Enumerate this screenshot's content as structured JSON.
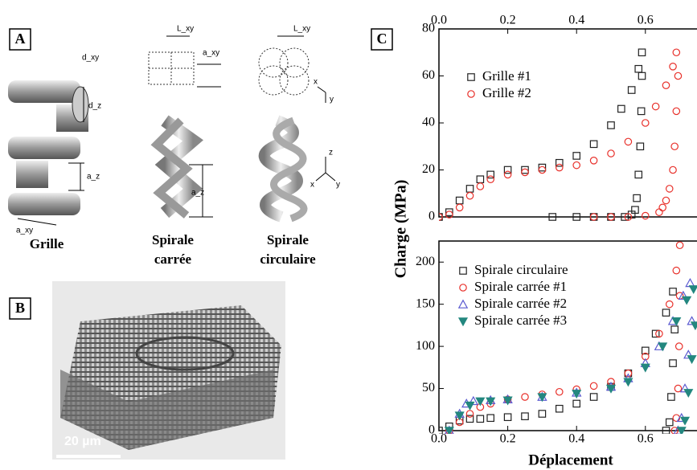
{
  "figure": {
    "panel_labels": [
      "A",
      "B",
      "C"
    ],
    "structures": [
      {
        "name_lines": [
          "Grille"
        ],
        "dims": [
          "d_xy",
          "d_z",
          "a_z",
          "a_xy"
        ]
      },
      {
        "name_lines": [
          "Spirale",
          "carrée"
        ],
        "dims": [
          "L_xy",
          "a_xy",
          "a_z"
        ]
      },
      {
        "name_lines": [
          "Spirale",
          "circulaire"
        ],
        "dims": [
          "L_xy",
          "x",
          "y",
          "z",
          "x",
          "y"
        ]
      }
    ],
    "scale_bar": "20 µm"
  },
  "chart_data": [
    {
      "type": "scatter",
      "ylabel": "Charge (MPa)",
      "xaxis_position": "top",
      "xlim": [
        0,
        0.75
      ],
      "ylim": [
        0,
        80
      ],
      "xticks": [
        {
          "value": 0,
          "label": "0.0"
        },
        0.2,
        0.4,
        0.6
      ],
      "yticks": [
        0,
        20,
        40,
        60,
        80
      ],
      "legend": "upper left",
      "series": [
        {
          "name": "Grille #1",
          "color": "#222222",
          "marker": "square",
          "x": [
            0,
            0.03,
            0.06,
            0.09,
            0.12,
            0.15,
            0.2,
            0.25,
            0.3,
            0.35,
            0.4,
            0.45,
            0.5,
            0.53,
            0.56,
            0.58,
            0.59,
            0.59,
            0.588,
            0.585,
            0.58,
            0.575,
            0.57,
            0.56,
            0.54,
            0.5,
            0.45,
            0.4,
            0.33
          ],
          "values": [
            0,
            2,
            7,
            12,
            16,
            18,
            20,
            20,
            21,
            23,
            26,
            31,
            39,
            46,
            54,
            63,
            70,
            60,
            45,
            30,
            18,
            8,
            3,
            1,
            0,
            0,
            0,
            0,
            0
          ]
        },
        {
          "name": "Grille #2",
          "color": "#e8302a",
          "marker": "circle",
          "x": [
            0,
            0.03,
            0.06,
            0.09,
            0.12,
            0.15,
            0.2,
            0.25,
            0.3,
            0.35,
            0.4,
            0.45,
            0.5,
            0.55,
            0.6,
            0.63,
            0.66,
            0.68,
            0.69,
            0.695,
            0.69,
            0.685,
            0.68,
            0.67,
            0.66,
            0.65,
            0.64,
            0.6,
            0.55,
            0.5,
            0.45
          ],
          "values": [
            0,
            1,
            4,
            9,
            13,
            16,
            18,
            19,
            20,
            21,
            22,
            24,
            27,
            32,
            40,
            47,
            56,
            64,
            70,
            60,
            45,
            30,
            20,
            12,
            7,
            4,
            2,
            0.5,
            0,
            0,
            0
          ]
        }
      ]
    },
    {
      "type": "scatter",
      "xlabel": "Déplacement",
      "xaxis_position": "bottom",
      "xlim": [
        0,
        0.75
      ],
      "ylim": [
        0,
        225
      ],
      "xticks": [
        {
          "value": 0,
          "label": "0.0"
        },
        0.2,
        0.4,
        0.6
      ],
      "yticks": [
        0,
        50,
        100,
        150,
        200
      ],
      "legend": "upper left",
      "series": [
        {
          "name": "Spirale circulaire",
          "color": "#222222",
          "marker": "square",
          "x": [
            0,
            0.03,
            0.06,
            0.09,
            0.12,
            0.15,
            0.2,
            0.25,
            0.3,
            0.35,
            0.4,
            0.45,
            0.5,
            0.55,
            0.6,
            0.63,
            0.66,
            0.68,
            0.685,
            0.68,
            0.675,
            0.67,
            0.66
          ],
          "values": [
            0,
            5,
            12,
            14,
            14,
            15,
            16,
            17,
            20,
            26,
            32,
            40,
            52,
            68,
            95,
            115,
            140,
            165,
            120,
            80,
            40,
            10,
            0
          ]
        },
        {
          "name": "Spirale carrée #1",
          "color": "#e8302a",
          "marker": "circle",
          "x": [
            0.03,
            0.06,
            0.09,
            0.12,
            0.15,
            0.2,
            0.25,
            0.3,
            0.35,
            0.4,
            0.45,
            0.5,
            0.55,
            0.6,
            0.64,
            0.67,
            0.69,
            0.7,
            0.7,
            0.698,
            0.695,
            0.69,
            0.685
          ],
          "values": [
            0,
            10,
            20,
            28,
            32,
            37,
            40,
            43,
            46,
            49,
            53,
            58,
            68,
            88,
            115,
            150,
            190,
            220,
            160,
            100,
            50,
            15,
            0
          ]
        },
        {
          "name": "Spirale carrée #2",
          "color": "#5a5ad0",
          "marker": "triangle",
          "x": [
            0.03,
            0.06,
            0.08,
            0.1,
            0.15,
            0.2,
            0.3,
            0.4,
            0.5,
            0.55,
            0.6,
            0.64,
            0.68,
            0.71,
            0.73,
            0.735,
            0.725,
            0.715,
            0.705,
            0.695
          ],
          "values": [
            0,
            20,
            32,
            35,
            36,
            37,
            40,
            45,
            52,
            62,
            80,
            100,
            130,
            160,
            175,
            130,
            90,
            50,
            15,
            0
          ]
        },
        {
          "name": "Spirale carrée #3",
          "color": "#23877f",
          "marker": "triangle-down",
          "x": [
            0.03,
            0.06,
            0.09,
            0.12,
            0.15,
            0.2,
            0.3,
            0.4,
            0.5,
            0.55,
            0.6,
            0.65,
            0.69,
            0.72,
            0.74,
            0.745,
            0.735,
            0.725,
            0.715,
            0.705
          ],
          "values": [
            0,
            18,
            30,
            35,
            35,
            36,
            40,
            44,
            50,
            58,
            75,
            100,
            130,
            155,
            168,
            125,
            85,
            45,
            12,
            0
          ]
        }
      ]
    }
  ]
}
